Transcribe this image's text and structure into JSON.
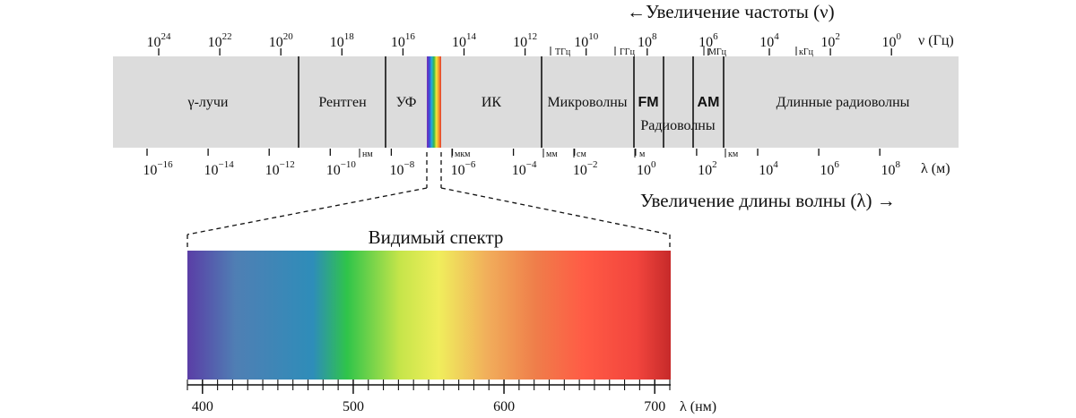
{
  "header": {
    "freq_increase": "←Увеличение частоты (ν)",
    "wave_increase": "Увеличение длины волны (λ) →"
  },
  "frequency_axis": {
    "unit_label": "ν (Гц)",
    "ticks": [
      {
        "base": "10",
        "exp": "24"
      },
      {
        "base": "10",
        "exp": "22"
      },
      {
        "base": "10",
        "exp": "20"
      },
      {
        "base": "10",
        "exp": "18"
      },
      {
        "base": "10",
        "exp": "16"
      },
      {
        "base": "10",
        "exp": "14"
      },
      {
        "base": "10",
        "exp": "12"
      },
      {
        "base": "10",
        "exp": "10"
      },
      {
        "base": "10",
        "exp": "8"
      },
      {
        "base": "10",
        "exp": "6"
      },
      {
        "base": "10",
        "exp": "4"
      },
      {
        "base": "10",
        "exp": "2"
      },
      {
        "base": "10",
        "exp": "0"
      }
    ],
    "unit_marks": [
      "ТГц",
      "ГГц",
      "МГц",
      "кГц"
    ]
  },
  "wavelength_axis": {
    "unit_label": "λ (м)",
    "ticks": [
      {
        "base": "10",
        "exp": "−16"
      },
      {
        "base": "10",
        "exp": "−14"
      },
      {
        "base": "10",
        "exp": "−12"
      },
      {
        "base": "10",
        "exp": "−10"
      },
      {
        "base": "10",
        "exp": "−8"
      },
      {
        "base": "10",
        "exp": "−6"
      },
      {
        "base": "10",
        "exp": "−4"
      },
      {
        "base": "10",
        "exp": "−2"
      },
      {
        "base": "10",
        "exp": "0"
      },
      {
        "base": "10",
        "exp": "2"
      },
      {
        "base": "10",
        "exp": "4"
      },
      {
        "base": "10",
        "exp": "6"
      },
      {
        "base": "10",
        "exp": "8"
      }
    ],
    "unit_marks": [
      "нм",
      "мкм",
      "мм",
      "см",
      "м",
      "км"
    ]
  },
  "bands": {
    "gamma": "γ-лучи",
    "xray": "Рентген",
    "uv": "УФ",
    "ir": "ИК",
    "microwave": "Микроволны",
    "fm": "FM",
    "am": "AM",
    "radio": "Радиоволны",
    "long_radio": "Длинные радиоволны"
  },
  "visible": {
    "title": "Видимый спектр",
    "axis_label": "λ (нм)",
    "tick_labels": [
      "400",
      "500",
      "600",
      "700"
    ]
  },
  "colors": {
    "band_fill": "#dcdcdc",
    "divider": "#111111",
    "rainbow": [
      "#7b2fb8",
      "#3a49d6",
      "#24b0d8",
      "#35b54a",
      "#f1ea3b",
      "#f29a2e",
      "#e63a2c"
    ],
    "visible_gradient": [
      "#5a3ea6",
      "#4f7fb4",
      "#2e8db9",
      "#2fc44a",
      "#c6e54a",
      "#f0ee5c",
      "#f1ae5b",
      "#ef7e4a",
      "#ff5b45",
      "#f2453d",
      "#c62a2a"
    ]
  }
}
